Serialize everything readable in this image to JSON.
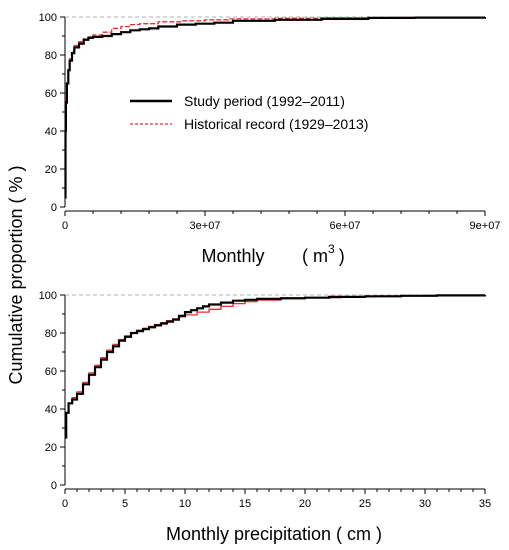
{
  "figure": {
    "ylabel": "Cumulative proportion ( % )",
    "legend": [
      {
        "label": "Study period (1992–2011)",
        "color": "#000000",
        "style": "solid"
      },
      {
        "label": "Historical record (1929–2013)",
        "color": "#e03030",
        "style": "dashed"
      }
    ]
  },
  "chart_data": [
    {
      "type": "line",
      "title": "",
      "xlabel": "Monthly",
      "xlabel_unit_base": "( m",
      "xlabel_unit_sup": "3",
      "xlabel_unit_close": ")",
      "ylabel": "Cumulative proportion ( % )",
      "xlim": [
        0,
        90000000
      ],
      "ylim": [
        0,
        100
      ],
      "xticks": [
        0,
        30000000,
        60000000,
        90000000
      ],
      "xtick_labels": [
        "0",
        "3e+07",
        "6e+07",
        "9e+07"
      ],
      "yticks": [
        0,
        20,
        40,
        60,
        80,
        100
      ],
      "ytick_labels": [
        "0",
        "20",
        "40",
        "60",
        "80",
        "100"
      ],
      "reference_line": 100,
      "legend_position": "center",
      "series": [
        {
          "name": "Study period (1992–2011)",
          "color": "#000000",
          "style": "solid",
          "x": [
            0,
            100000,
            200000,
            400000,
            700000,
            1000000,
            1500000,
            2000000,
            3000000,
            4000000,
            5000000,
            6000000,
            8000000,
            10000000,
            12000000,
            14000000,
            16000000,
            18000000,
            20000000,
            24000000,
            28000000,
            32000000,
            36000000,
            45000000,
            55000000,
            65000000,
            75000000,
            90000000
          ],
          "y": [
            5,
            40,
            55,
            65,
            72,
            77,
            81,
            84,
            86,
            88,
            89,
            89.5,
            90,
            91,
            92,
            93,
            93.5,
            94,
            95,
            96,
            96.5,
            97,
            98,
            98.5,
            99,
            99.5,
            99.7,
            100
          ]
        },
        {
          "name": "Historical record (1929–2013)",
          "color": "#e03030",
          "style": "dashed",
          "x": [
            0,
            100000,
            200000,
            400000,
            700000,
            1000000,
            1500000,
            2000000,
            3000000,
            4000000,
            5000000,
            6000000,
            8000000,
            10000000,
            12000000,
            14000000,
            16000000,
            20000000,
            25000000,
            30000000,
            35000000,
            45000000,
            55000000,
            70000000,
            90000000
          ],
          "y": [
            5,
            42,
            57,
            66,
            73,
            78,
            82,
            85,
            87,
            88.5,
            89.5,
            90.5,
            92,
            94,
            95,
            96,
            96.5,
            97.5,
            98,
            98.5,
            99,
            99.3,
            99.6,
            99.8,
            100
          ]
        }
      ]
    },
    {
      "type": "line",
      "title": "",
      "xlabel": "Monthly precipitation ( cm )",
      "ylabel": "Cumulative proportion ( % )",
      "xlim": [
        0,
        35
      ],
      "ylim": [
        0,
        100
      ],
      "xticks": [
        0,
        5,
        10,
        15,
        20,
        25,
        30,
        35
      ],
      "xtick_labels": [
        "0",
        "5",
        "10",
        "15",
        "20",
        "25",
        "30",
        "35"
      ],
      "yticks": [
        0,
        20,
        40,
        60,
        80,
        100
      ],
      "ytick_labels": [
        "0",
        "20",
        "40",
        "60",
        "80",
        "100"
      ],
      "reference_line": 100,
      "series": [
        {
          "name": "Study period (1992–2011)",
          "color": "#000000",
          "style": "solid",
          "x": [
            0,
            0.1,
            0.3,
            0.6,
            1,
            1.5,
            2,
            2.5,
            3,
            3.5,
            4,
            4.5,
            5,
            5.5,
            6,
            6.5,
            7,
            7.5,
            8,
            8.5,
            9,
            9.5,
            10,
            10.5,
            11,
            11.5,
            12,
            13,
            14,
            15,
            16,
            18,
            20,
            22,
            25,
            28,
            31,
            35
          ],
          "y": [
            25,
            38,
            43,
            45,
            48,
            53,
            58,
            62,
            66,
            70,
            73,
            76,
            78,
            80,
            81,
            82,
            83,
            84,
            85,
            86,
            87,
            89,
            91,
            92,
            93,
            94,
            95,
            96,
            97,
            97.5,
            98,
            98.3,
            98.6,
            99,
            99.3,
            99.6,
            99.8,
            100
          ]
        },
        {
          "name": "Historical record (1929–2013)",
          "color": "#e03030",
          "style": "solid",
          "x": [
            0,
            0.1,
            0.3,
            0.6,
            1,
            1.5,
            2,
            2.5,
            3,
            3.5,
            4,
            4.5,
            5,
            5.5,
            6,
            6.5,
            7,
            7.5,
            8,
            8.5,
            9,
            9.5,
            10,
            11,
            12,
            13,
            14,
            15,
            16,
            18,
            20,
            23,
            26,
            30,
            35
          ],
          "y": [
            25,
            38,
            43,
            46,
            49,
            54,
            59,
            63,
            67,
            71,
            74,
            76.5,
            78.5,
            80,
            81.5,
            82.5,
            83.5,
            84.5,
            85.5,
            86.5,
            87.5,
            88.5,
            89.5,
            91,
            92.5,
            94,
            95.5,
            96.5,
            97.3,
            98,
            98.6,
            99.1,
            99.5,
            99.8,
            100
          ]
        }
      ]
    }
  ]
}
